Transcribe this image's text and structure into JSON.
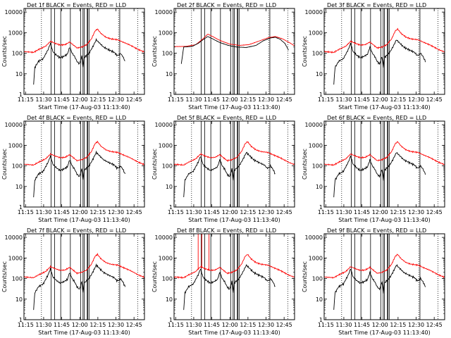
{
  "colors": {
    "events": "#000000",
    "lld": "#ff0000",
    "frame": "#000000",
    "background": "#ffffff"
  },
  "chart_data": {
    "type": "line",
    "layout": "3x3 grid",
    "xlabel": "Start Time (17-Aug-03 11:13:40)",
    "ylabel": "Counts/sec",
    "x_ticks": [
      "11:15",
      "11:30",
      "11:45",
      "12:00",
      "12:15",
      "12:30",
      "12:45"
    ],
    "x_tick_minutes": [
      1.33,
      16.33,
      31.33,
      46.33,
      61.33,
      76.33,
      91.33
    ],
    "xlim_minutes": [
      0,
      100
    ],
    "y_ticks": [
      "1",
      "10",
      "100",
      "1000",
      "10000"
    ],
    "y_scale": "log",
    "ylim": [
      1,
      15000
    ],
    "vertical_markers_minutes": {
      "dotted": [
        14.5,
        78.5,
        94.5
      ],
      "solid": [
        22.5,
        25.5,
        30.5,
        38.5,
        47,
        49,
        50,
        52.5,
        53,
        54,
        79.5
      ]
    },
    "legend": {
      "events": "BLACK = Events",
      "lld": "RED = LLD"
    },
    "panels": [
      {
        "title": "Det 1f BLACK = Events, RED = LLD",
        "profile": "flare"
      },
      {
        "title": "Det 2f BLACK = Events, RED = LLD",
        "profile": "smooth"
      },
      {
        "title": "Det 3f BLACK = Events, RED = LLD",
        "profile": "flare"
      },
      {
        "title": "Det 4f BLACK = Events, RED = LLD",
        "profile": "flare"
      },
      {
        "title": "Det 5f BLACK = Events, RED = LLD",
        "profile": "flare"
      },
      {
        "title": "Det 6f BLACK = Events, RED = LLD",
        "profile": "flare"
      },
      {
        "title": "Det 7f BLACK = Events, RED = LLD",
        "profile": "flare"
      },
      {
        "title": "Det 8f BLACK = Events, RED = LLD",
        "profile": "flare_spikes",
        "spikes_minutes": [
          20,
          23,
          29
        ]
      },
      {
        "title": "Det 9f BLACK = Events, RED = LLD",
        "profile": "flare"
      }
    ],
    "series": [
      {
        "name": "Events",
        "color": "black",
        "flare_curve": [
          [
            8,
            3
          ],
          [
            9,
            20
          ],
          [
            12,
            40
          ],
          [
            16,
            55
          ],
          [
            20,
            150
          ],
          [
            22,
            300
          ],
          [
            24,
            120
          ],
          [
            27,
            80
          ],
          [
            30,
            60
          ],
          [
            33,
            70
          ],
          [
            36,
            90
          ],
          [
            38,
            200
          ],
          [
            40,
            100
          ],
          [
            42,
            70
          ],
          [
            44,
            40
          ],
          [
            46,
            30
          ],
          [
            48,
            70
          ],
          [
            49,
            20
          ],
          [
            50,
            60
          ],
          [
            52,
            80
          ],
          [
            54,
            100
          ],
          [
            57,
            200
          ],
          [
            60,
            450
          ],
          [
            63,
            300
          ],
          [
            66,
            200
          ],
          [
            70,
            150
          ],
          [
            75,
            110
          ],
          [
            77,
            80
          ],
          [
            78.5,
            80
          ],
          [
            80,
            100
          ],
          [
            82,
            70
          ],
          [
            84,
            40
          ]
        ],
        "smooth_curve": [
          [
            6,
            30
          ],
          [
            8,
            200
          ],
          [
            15,
            215
          ],
          [
            20,
            300
          ],
          [
            25,
            500
          ],
          [
            28,
            650
          ],
          [
            32,
            500
          ],
          [
            38,
            330
          ],
          [
            45,
            240
          ],
          [
            52,
            200
          ],
          [
            60,
            190
          ],
          [
            68,
            240
          ],
          [
            74,
            400
          ],
          [
            80,
            550
          ],
          [
            84,
            600
          ],
          [
            88,
            480
          ],
          [
            92,
            300
          ],
          [
            95,
            140
          ]
        ]
      },
      {
        "name": "LLD",
        "color": "red",
        "flare_curve": [
          [
            0,
            120
          ],
          [
            8,
            110
          ],
          [
            12,
            150
          ],
          [
            18,
            220
          ],
          [
            22,
            380
          ],
          [
            26,
            300
          ],
          [
            30,
            250
          ],
          [
            34,
            260
          ],
          [
            38,
            350
          ],
          [
            40,
            280
          ],
          [
            44,
            180
          ],
          [
            48,
            200
          ],
          [
            52,
            260
          ],
          [
            56,
            500
          ],
          [
            59,
            1200
          ],
          [
            61,
            1500
          ],
          [
            64,
            900
          ],
          [
            68,
            600
          ],
          [
            72,
            500
          ],
          [
            78,
            450
          ],
          [
            82,
            350
          ],
          [
            88,
            250
          ],
          [
            95,
            150
          ],
          [
            100,
            115
          ]
        ],
        "smooth_curve": [
          [
            0,
            210
          ],
          [
            10,
            215
          ],
          [
            18,
            260
          ],
          [
            24,
            500
          ],
          [
            28,
            850
          ],
          [
            32,
            650
          ],
          [
            38,
            420
          ],
          [
            46,
            280
          ],
          [
            54,
            240
          ],
          [
            62,
            260
          ],
          [
            70,
            380
          ],
          [
            78,
            560
          ],
          [
            84,
            650
          ],
          [
            90,
            500
          ],
          [
            96,
            320
          ],
          [
            100,
            230
          ]
        ]
      }
    ]
  }
}
